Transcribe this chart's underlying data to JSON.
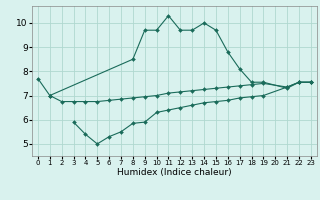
{
  "xlabel": "Humidex (Indice chaleur)",
  "bg_color": "#d9f2ee",
  "grid_color": "#b0d8d0",
  "line_color": "#1a6b5a",
  "xlim": [
    -0.5,
    23.5
  ],
  "ylim": [
    4.5,
    10.7
  ],
  "line1_x": [
    0,
    1,
    8,
    9,
    10,
    11,
    12,
    13,
    14,
    15,
    16,
    17,
    18,
    19,
    21,
    22,
    23
  ],
  "line1_y": [
    7.7,
    7.0,
    8.5,
    9.7,
    9.7,
    10.3,
    9.7,
    9.7,
    10.0,
    9.7,
    8.8,
    8.1,
    7.55,
    7.55,
    7.3,
    7.55,
    7.55
  ],
  "line2_x": [
    1,
    2,
    3,
    4,
    5,
    6,
    7,
    8,
    9,
    10,
    11,
    12,
    13,
    14,
    15,
    16,
    17,
    18,
    19,
    21,
    22,
    23
  ],
  "line2_y": [
    7.0,
    6.75,
    6.75,
    6.75,
    6.75,
    6.8,
    6.85,
    6.9,
    6.95,
    7.0,
    7.1,
    7.15,
    7.2,
    7.25,
    7.3,
    7.35,
    7.4,
    7.45,
    7.5,
    7.35,
    7.55,
    7.55
  ],
  "line3_x": [
    3,
    4,
    5,
    6,
    7,
    8,
    9,
    10,
    11,
    12,
    13,
    14,
    15,
    16,
    17,
    18,
    19,
    21,
    22,
    23
  ],
  "line3_y": [
    5.9,
    5.4,
    5.0,
    5.3,
    5.5,
    5.85,
    5.9,
    6.3,
    6.4,
    6.5,
    6.6,
    6.7,
    6.75,
    6.8,
    6.9,
    6.95,
    7.0,
    7.35,
    7.55,
    7.55
  ],
  "xticks": [
    0,
    1,
    2,
    3,
    4,
    5,
    6,
    7,
    8,
    9,
    10,
    11,
    12,
    13,
    14,
    15,
    16,
    17,
    18,
    19,
    20,
    21,
    22,
    23
  ],
  "yticks": [
    5,
    6,
    7,
    8,
    9,
    10
  ]
}
